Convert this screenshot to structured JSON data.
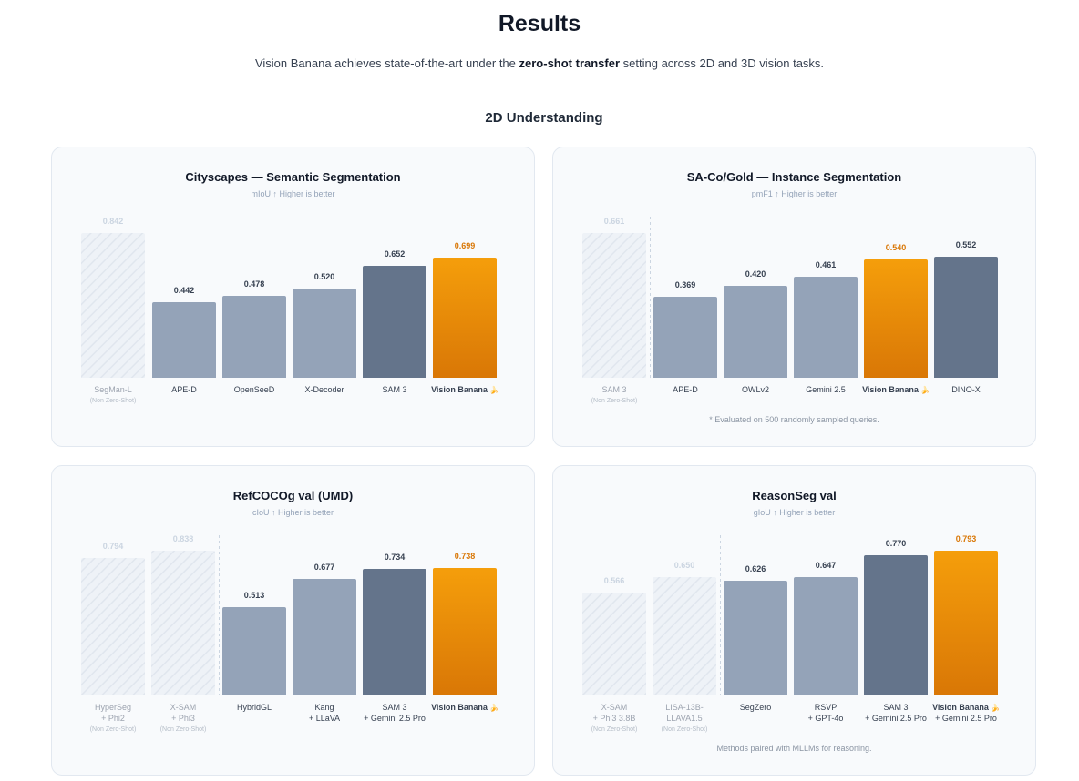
{
  "header": {
    "title": "Results",
    "subtitle_before": "Vision Banana achieves state-of-the-art under the ",
    "subtitle_bold": "zero-shot transfer",
    "subtitle_after": " setting across 2D and 3D vision tasks."
  },
  "section": {
    "title": "2D Understanding"
  },
  "colors": {
    "muted_label": "#cbd5e1",
    "baseline_bar": "#94a3b8",
    "sam_bar": "#64748b",
    "highlight_top": "#f59e0b",
    "highlight_bottom": "#d97706",
    "highlight_text": "#d97706",
    "value_text": "#374151"
  },
  "chart_data": [
    {
      "type": "bar",
      "title": "Cityscapes — Semantic Segmentation",
      "ylabel": "mIoU ↑ Higher is better",
      "ylim": [
        0,
        0.842
      ],
      "note": "",
      "categories": [
        {
          "label": [
            "SegMan-L"
          ],
          "sub": "(Non Zero-Shot)",
          "value": 0.842,
          "style": "muted"
        },
        {
          "label": [
            "APE-D"
          ],
          "value": 0.442,
          "style": "baseline"
        },
        {
          "label": [
            "OpenSeeD"
          ],
          "value": 0.478,
          "style": "baseline"
        },
        {
          "label": [
            "X-Decoder"
          ],
          "value": 0.52,
          "style": "baseline"
        },
        {
          "label": [
            "SAM 3"
          ],
          "value": 0.652,
          "style": "sam"
        },
        {
          "label": [
            "Vision Banana"
          ],
          "value": 0.699,
          "style": "highlight"
        }
      ]
    },
    {
      "type": "bar",
      "title": "SA-Co/Gold — Instance Segmentation",
      "ylabel": "pmF1 ↑ Higher is better",
      "ylim": [
        0,
        0.661
      ],
      "note": "* Evaluated on 500 randomly sampled queries.",
      "categories": [
        {
          "label": [
            "SAM 3"
          ],
          "sub": "(Non Zero-Shot)",
          "value": 0.661,
          "style": "muted"
        },
        {
          "label": [
            "APE-D"
          ],
          "value": 0.369,
          "style": "baseline"
        },
        {
          "label": [
            "OWLv2"
          ],
          "value": 0.42,
          "style": "baseline"
        },
        {
          "label": [
            "Gemini 2.5"
          ],
          "value": 0.461,
          "style": "baseline"
        },
        {
          "label": [
            "Vision Banana"
          ],
          "value": 0.54,
          "style": "highlight"
        },
        {
          "label": [
            "DINO-X"
          ],
          "value": 0.552,
          "style": "sam"
        }
      ]
    },
    {
      "type": "bar",
      "title": "RefCOCOg val (UMD)",
      "ylabel": "cIoU ↑ Higher is better",
      "ylim": [
        0,
        0.838
      ],
      "note": "",
      "categories": [
        {
          "label": [
            "HyperSeg",
            "+ Phi2"
          ],
          "sub": "(Non Zero-Shot)",
          "value": 0.794,
          "style": "muted"
        },
        {
          "label": [
            "X-SAM",
            "+ Phi3"
          ],
          "sub": "(Non Zero-Shot)",
          "value": 0.838,
          "style": "muted"
        },
        {
          "label": [
            "HybridGL"
          ],
          "value": 0.513,
          "style": "baseline"
        },
        {
          "label": [
            "Kang",
            "+ LLaVA"
          ],
          "value": 0.677,
          "style": "baseline"
        },
        {
          "label": [
            "SAM 3",
            "+ Gemini 2.5 Pro"
          ],
          "value": 0.734,
          "style": "sam"
        },
        {
          "label": [
            "Vision Banana"
          ],
          "value": 0.738,
          "style": "highlight"
        }
      ]
    },
    {
      "type": "bar",
      "title": "ReasonSeg val",
      "ylabel": "gIoU ↑ Higher is better",
      "ylim": [
        0,
        0.793
      ],
      "note": "Methods paired with MLLMs for reasoning.",
      "categories": [
        {
          "label": [
            "X-SAM",
            "+ Phi3 3.8B"
          ],
          "sub": "(Non Zero-Shot)",
          "value": 0.566,
          "style": "muted"
        },
        {
          "label": [
            "LISA-13B-",
            "LLAVA1.5"
          ],
          "sub": "(Non Zero-Shot)",
          "value": 0.65,
          "style": "muted"
        },
        {
          "label": [
            "SegZero"
          ],
          "value": 0.626,
          "style": "baseline"
        },
        {
          "label": [
            "RSVP",
            "+ GPT-4o"
          ],
          "value": 0.647,
          "style": "baseline"
        },
        {
          "label": [
            "SAM 3",
            "+ Gemini 2.5 Pro"
          ],
          "value": 0.77,
          "style": "sam"
        },
        {
          "label": [
            "Vision Banana",
            "+ Gemini 2.5 Pro"
          ],
          "value": 0.793,
          "style": "highlight"
        }
      ]
    }
  ]
}
